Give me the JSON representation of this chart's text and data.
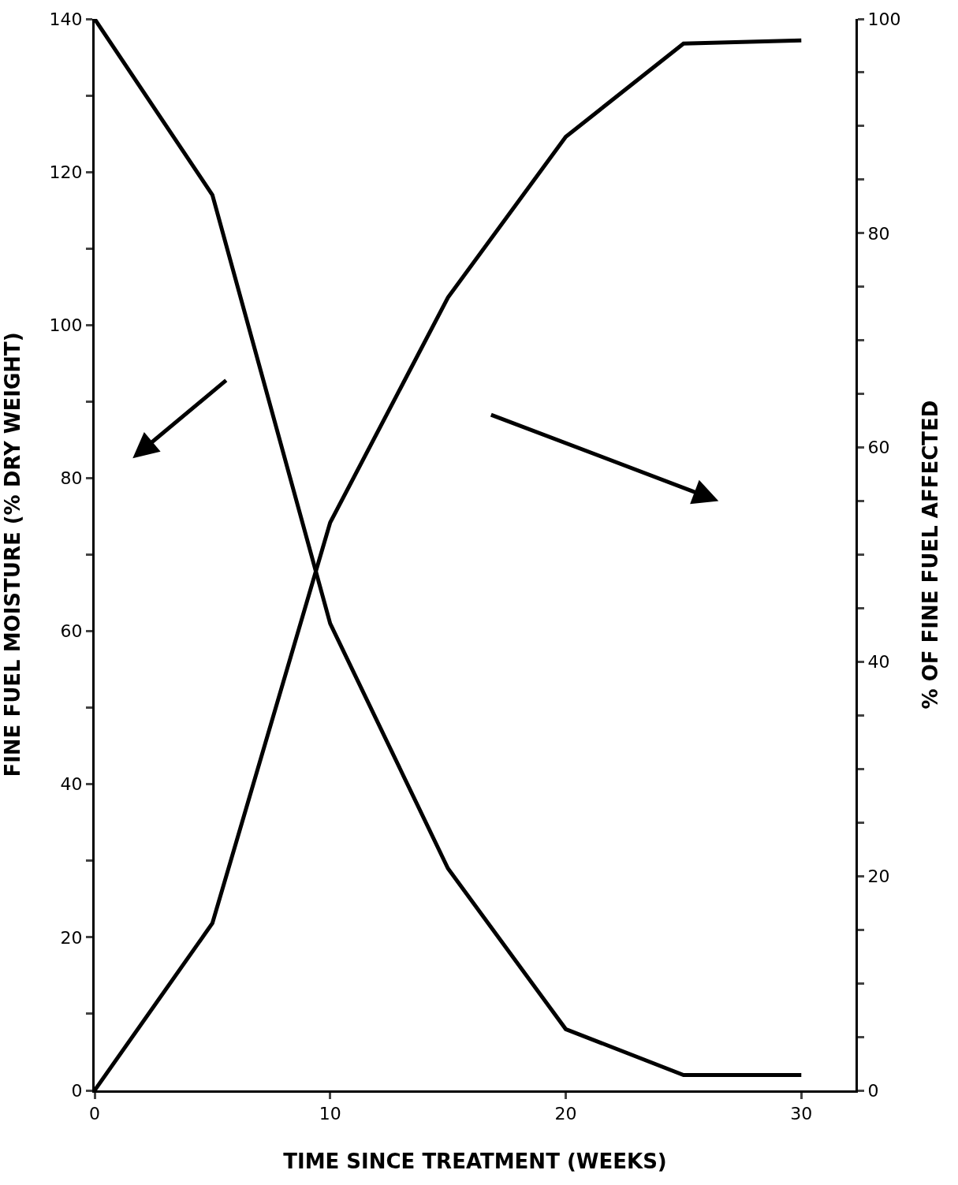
{
  "chart_data": {
    "type": "line",
    "xlabel": "TIME SINCE TREATMENT (WEEKS)",
    "ylabel": "FINE FUEL MOISTURE (% DRY WEIGHT)",
    "y2label": "% OF FINE FUEL AFFECTED",
    "x": [
      0,
      5,
      10,
      15,
      20,
      25,
      30
    ],
    "series": [
      {
        "color": "#000000",
        "values": [
          140,
          117,
          61,
          29,
          8,
          2,
          2
        ]
      },
      {
        "color": "#000000",
        "axis": "y2",
        "values": [
          0,
          15.6,
          53,
          74,
          89,
          97.7,
          98
        ]
      }
    ],
    "xlim": [
      0,
      32.3
    ],
    "xticks": [
      0,
      10,
      20,
      30
    ],
    "ylim": [
      0,
      140
    ],
    "yticks": [
      0,
      {
        "value": 10,
        "label": null
      },
      20,
      {
        "value": 30,
        "label": null
      },
      40,
      {
        "value": 50,
        "label": null
      },
      60,
      {
        "value": 70,
        "label": null
      },
      80,
      {
        "value": 90,
        "label": null
      },
      100,
      {
        "value": 110,
        "label": null
      },
      120,
      {
        "value": 130,
        "label": null
      },
      140
    ],
    "y2lim": [
      0,
      100
    ],
    "y2ticks": [
      0,
      {
        "value": 5,
        "label": null
      },
      {
        "value": 10,
        "label": null
      },
      {
        "value": 15,
        "label": null
      },
      20,
      {
        "value": 25,
        "label": null
      },
      {
        "value": 30,
        "label": null
      },
      {
        "value": 35,
        "label": null
      },
      40,
      {
        "value": 45,
        "label": null
      },
      {
        "value": 50,
        "label": null
      },
      {
        "value": 55,
        "label": null
      },
      60,
      {
        "value": 65,
        "label": null
      },
      {
        "value": 70,
        "label": null
      },
      {
        "value": 75,
        "label": null
      },
      80,
      {
        "value": 85,
        "label": null
      },
      {
        "value": 90,
        "label": null
      },
      {
        "value": 95,
        "label": null
      },
      100
    ],
    "marker": "none",
    "line_style": "solid"
  }
}
